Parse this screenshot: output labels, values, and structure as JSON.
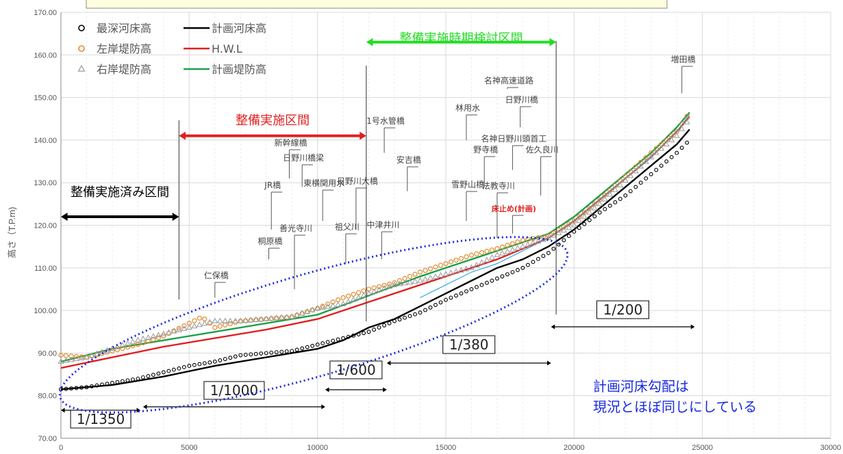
{
  "chart_data": {
    "type": "line",
    "xlim": [
      0,
      30000
    ],
    "ylim": [
      70,
      170
    ],
    "x_ticks": [
      "0",
      "5000",
      "10000",
      "15000",
      "20000",
      "25000",
      "30000"
    ],
    "y_ticks": [
      "70.00",
      "80.00",
      "90.00",
      "100.00",
      "110.00",
      "120.00",
      "130.00",
      "140.00",
      "150.00",
      "160.00",
      "170.00"
    ],
    "ylabel": "高さ（T.P.m)",
    "grid": true,
    "legend": [
      {
        "name": "最深河床高",
        "marker": "circle",
        "color": "#000000"
      },
      {
        "name": "左岸堤防高",
        "marker": "circle",
        "color": "#E08A2E"
      },
      {
        "name": "右岸堤防高",
        "marker": "triangle",
        "color": "#999999"
      },
      {
        "name": "計画河床高",
        "marker": "line",
        "color": "#000000"
      },
      {
        "name": "H.W.L",
        "marker": "line",
        "color": "#E02020"
      },
      {
        "name": "計画堤防高",
        "marker": "line",
        "color": "#1AA04A"
      }
    ],
    "series": [
      {
        "name": "計画河床高",
        "color": "#000000",
        "x": [
          0,
          2000,
          4000,
          6000,
          8000,
          10000,
          11000,
          12000,
          13000,
          14000,
          15000,
          16000,
          17000,
          18000,
          19000,
          20000,
          21000,
          22000,
          23000,
          24000,
          24500
        ],
        "y": [
          81.5,
          82.5,
          84.5,
          87,
          89,
          91,
          93,
          96,
          98,
          101,
          104,
          107,
          110,
          112,
          115,
          119,
          124,
          129,
          134,
          139,
          142.5
        ]
      },
      {
        "name": "H.W.L",
        "color": "#E02020",
        "x": [
          0,
          2000,
          4000,
          6000,
          8000,
          10000,
          12000,
          14000,
          16000,
          17000,
          18000,
          19000,
          20000,
          21000,
          22000,
          23000,
          24000,
          24500
        ],
        "y": [
          86.5,
          89,
          91.5,
          93.5,
          95.5,
          98,
          102,
          106,
          110,
          112,
          114.5,
          117,
          121,
          126,
          131,
          136,
          142,
          145.5
        ]
      },
      {
        "name": "計画堤防高",
        "color": "#1AA04A",
        "x": [
          0,
          2000,
          4000,
          6000,
          8000,
          10000,
          12000,
          14000,
          16000,
          17000,
          18000,
          19000,
          20000,
          21000,
          22000,
          23000,
          24000,
          24500
        ],
        "y": [
          88,
          91,
          93,
          95,
          97,
          99,
          103.5,
          108,
          112,
          114,
          116,
          118,
          122,
          127,
          132,
          137,
          143,
          146.5
        ]
      },
      {
        "name": "",
        "color": "#2EA8E0",
        "x": [
          14000,
          15000,
          16000,
          17000,
          18000,
          19000,
          20000,
          21000,
          22000,
          23000,
          24000,
          24500
        ],
        "y": [
          103,
          106,
          109,
          111,
          114,
          117,
          121,
          126,
          131,
          136,
          142,
          146
        ]
      },
      {
        "name": "最深河床高",
        "color": "#000000",
        "x": [
          0,
          1000,
          2000,
          3000,
          4000,
          5000,
          6000,
          7000,
          8000,
          9000,
          10000,
          11000,
          12000,
          13000,
          14000,
          15000,
          16000,
          17000,
          18000,
          19000,
          20000,
          21000,
          22000,
          23000,
          24000,
          24500
        ],
        "y": [
          81.5,
          82,
          83,
          84,
          85.5,
          87,
          88,
          89.5,
          90,
          90.5,
          92,
          93.5,
          95,
          97.5,
          99.5,
          102.5,
          105,
          107.5,
          110,
          113.5,
          118.5,
          123,
          127,
          132,
          137,
          140
        ]
      },
      {
        "name": "左岸堤防高",
        "color": "#E08A2E",
        "x": [
          0,
          1000,
          2000,
          3000,
          4000,
          5000,
          5500,
          6000,
          7000,
          8000,
          9000,
          10000,
          11000,
          12000,
          13000,
          14000,
          15000,
          16000,
          17000,
          18000,
          19000,
          20000,
          21000,
          22000,
          23000,
          24000,
          24500
        ],
        "y": [
          89.5,
          89,
          90.5,
          92,
          94,
          97,
          98.5,
          96,
          97.5,
          98,
          98.5,
          100.5,
          103,
          105,
          106.5,
          109,
          111,
          113,
          114.5,
          116.5,
          117.5,
          121,
          126,
          131.5,
          137,
          142,
          146.5
        ]
      },
      {
        "name": "右岸堤防高",
        "color": "#999999",
        "x": [
          0,
          1000,
          2000,
          3000,
          4000,
          5000,
          6000,
          7000,
          8000,
          9000,
          10000,
          11000,
          12000,
          13000,
          14000,
          15000,
          16000,
          17000,
          18000,
          19000,
          20000,
          21000,
          22000,
          23000,
          24000,
          24500
        ],
        "y": [
          88,
          89,
          91,
          93,
          94.5,
          96,
          97.5,
          97.5,
          98,
          98.5,
          100.5,
          101.5,
          104,
          106,
          107,
          108.5,
          110,
          113,
          115,
          117,
          120,
          125,
          130.5,
          136,
          141,
          145
        ]
      }
    ],
    "ranges": [
      {
        "label": "整備実施済み区間",
        "x1": 0,
        "x2": 4600,
        "y": 122,
        "color": "#000000"
      },
      {
        "label": "整備実施区間",
        "x1": 4600,
        "x2": 11900,
        "y": 141,
        "color": "#E02020"
      },
      {
        "label": "整備実施時期検討区間",
        "x1": 11900,
        "x2": 19300,
        "y": 163,
        "color": "#22DD22"
      }
    ],
    "slopes": [
      {
        "label": "1/1350",
        "x1": 0,
        "x2": 3100
      },
      {
        "label": "1/1000",
        "x2": 10300,
        "x1": 3200
      },
      {
        "label": "1/600",
        "x1": 10300,
        "x2": 12700
      },
      {
        "label": "1/380",
        "x1": 12700,
        "x2": 19100
      },
      {
        "label": "1/200",
        "x1": 19100,
        "x2": 24700
      }
    ],
    "structures": [
      {
        "name": "仁保橋",
        "x": 6000
      },
      {
        "name": "桐原橋",
        "x": 8100
      },
      {
        "name": "JR橋",
        "x": 8200
      },
      {
        "name": "善光寺川",
        "x": 9100
      },
      {
        "name": "新幹線橋",
        "x": 8900
      },
      {
        "name": "日野川橋梁",
        "x": 9400
      },
      {
        "name": "東横関用水",
        "x": 10200
      },
      {
        "name": "祖父川",
        "x": 11100
      },
      {
        "name": "日野川大橋",
        "x": 11500
      },
      {
        "name": "1号水管橋",
        "x": 12600
      },
      {
        "name": "安吉橋",
        "x": 13500
      },
      {
        "name": "中津井川",
        "x": 12500
      },
      {
        "name": "雪野山橋",
        "x": 15800
      },
      {
        "name": "林用水",
        "x": 15800
      },
      {
        "name": "野寺橋",
        "x": 16500
      },
      {
        "name": "法教寺川",
        "x": 17000
      },
      {
        "name": "名神高速道路",
        "x": 17400
      },
      {
        "name": "日野川橋",
        "x": 17900
      },
      {
        "name": "名神日野川頭首工",
        "x": 17600
      },
      {
        "name": "佐久良川",
        "x": 18700
      },
      {
        "name": "床止め(計画)",
        "x": 17600
      },
      {
        "name": "増田橋",
        "x": 24200
      }
    ]
  },
  "annotations": {
    "gradient_note_line1": "計画河床勾配は",
    "gradient_note_line2": "現況とほぼ同じにしている"
  }
}
